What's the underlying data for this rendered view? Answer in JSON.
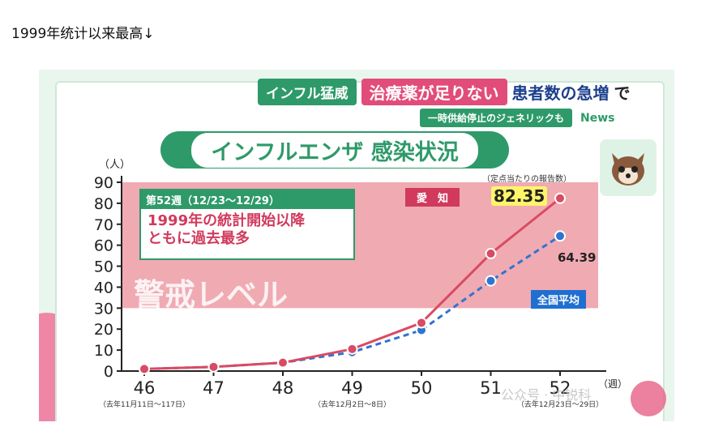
{
  "caption": "1999年统计以来最高↓",
  "banner": {
    "tag": "インフル猛威",
    "highlight": "治療薬が足りない",
    "rest_a": "患者数の急増",
    "rest_b": "で",
    "sub": "一時供給停止のジェネリックも",
    "news": "News"
  },
  "title": "インフルエンザ 感染状況",
  "info": {
    "head": "第52週（12/23〜12/29）",
    "line1": "1999年の統計開始以降",
    "line2": "ともに過去最多"
  },
  "warning_label": "警戒レベル",
  "labels": {
    "aichi": "愛　知",
    "zenkoku": "全国平均",
    "rate": "（定点当たりの報告数）",
    "aichi_value": "82.35",
    "zenkoku_value": "64.39"
  },
  "watermark": "公众号 · 中锐科",
  "chart_data": {
    "type": "line",
    "title": "インフルエンザ 感染状況",
    "ylabel": "（人）",
    "xlabel": "（週）",
    "x": [
      "46",
      "47",
      "48",
      "49",
      "50",
      "51",
      "52"
    ],
    "x_sublabels": [
      "（去年11月11日〜117日）",
      "",
      "",
      "（去年12月2日〜8日）",
      "",
      "",
      "（去年12月23日〜29日）"
    ],
    "ylim": [
      0,
      90
    ],
    "yticks": [
      0,
      10,
      20,
      30,
      40,
      50,
      60,
      70,
      80,
      90
    ],
    "warning_band": [
      30,
      90
    ],
    "series": [
      {
        "name": "愛　知",
        "color": "#d94b63",
        "dash": false,
        "values": [
          1,
          2,
          4,
          10.5,
          23,
          56,
          82.35
        ]
      },
      {
        "name": "全国平均",
        "color": "#2f74d0",
        "dash": true,
        "values": [
          1,
          2,
          4,
          9,
          19.5,
          43,
          64.39
        ]
      }
    ],
    "grid": false
  }
}
